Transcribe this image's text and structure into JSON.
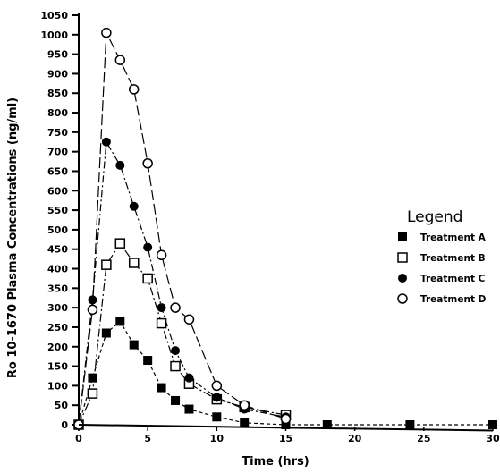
{
  "chart_data": {
    "type": "line",
    "xlabel": "Time (hrs)",
    "ylabel": "Ro 10-1670 Plasma Concentrations (ng/ml)",
    "xlim": [
      0,
      30
    ],
    "ylim": [
      0,
      1050
    ],
    "x_ticks": [
      0,
      5,
      10,
      15,
      20,
      25,
      30
    ],
    "x_tick_labels": [
      "0",
      "5",
      "10",
      "15",
      "20",
      "25",
      "30"
    ],
    "y_ticks": [
      0,
      50,
      100,
      150,
      200,
      250,
      300,
      350,
      400,
      450,
      500,
      550,
      600,
      650,
      700,
      750,
      800,
      850,
      900,
      950,
      1000,
      1050
    ],
    "y_tick_labels": [
      "0",
      "50",
      "100",
      "150",
      "200",
      "250",
      "300",
      "350",
      "400",
      "450",
      "500",
      "550",
      "600",
      "650",
      "700",
      "750",
      "800",
      "850",
      "900",
      "950",
      "1000",
      "1050"
    ],
    "grid": false,
    "legend": {
      "title": "Legend",
      "position": "right",
      "entries": [
        "Treatment A",
        "Treatment B",
        "Treatment C",
        "Treatment D"
      ]
    },
    "series": [
      {
        "name": "Treatment A",
        "marker": "filled-square",
        "dash": "4,3",
        "x": [
          0,
          1,
          2,
          3,
          4,
          5,
          6,
          7,
          8,
          10,
          12,
          15,
          18,
          24,
          30
        ],
        "y": [
          0,
          120,
          235,
          265,
          205,
          165,
          95,
          62,
          40,
          20,
          5,
          0,
          0,
          0,
          0
        ]
      },
      {
        "name": "Treatment B",
        "marker": "open-square",
        "dash": "9,3,2,3",
        "x": [
          0,
          1,
          2,
          3,
          4,
          5,
          6,
          7,
          8,
          10,
          12,
          15
        ],
        "y": [
          0,
          80,
          410,
          465,
          415,
          375,
          260,
          150,
          105,
          65,
          45,
          25
        ]
      },
      {
        "name": "Treatment C",
        "marker": "filled-circle",
        "dash": "8,3,2,3",
        "x": [
          0,
          1,
          2,
          3,
          4,
          5,
          6,
          7,
          8,
          10,
          12,
          15
        ],
        "y": [
          0,
          320,
          725,
          665,
          560,
          455,
          300,
          190,
          120,
          70,
          40,
          20
        ]
      },
      {
        "name": "Treatment D",
        "marker": "open-circle",
        "dash": "12,4",
        "x": [
          0,
          1,
          2,
          3,
          4,
          5,
          6,
          7,
          8,
          10,
          12,
          15
        ],
        "y": [
          0,
          295,
          1005,
          935,
          860,
          670,
          435,
          300,
          270,
          100,
          50,
          15
        ]
      },
      {
        "name": "",
        "marker": "none",
        "dash": "",
        "x": [
          0,
          20,
          30
        ],
        "y": [
          0,
          -10,
          -15
        ]
      }
    ]
  }
}
